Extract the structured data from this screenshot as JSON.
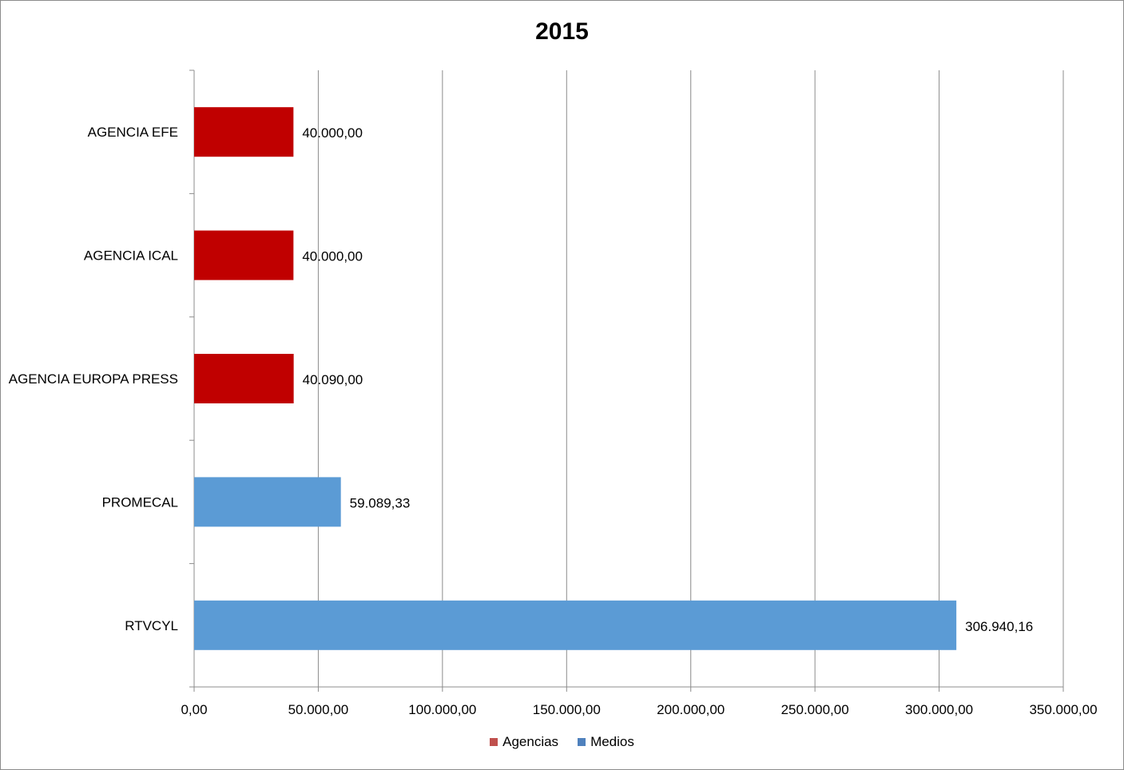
{
  "chart_data": {
    "type": "bar",
    "orientation": "horizontal",
    "title": "2015",
    "xlabel": "",
    "ylabel": "",
    "xlim": [
      0,
      350000
    ],
    "x_ticks": [
      0,
      50000,
      100000,
      150000,
      200000,
      250000,
      300000,
      350000
    ],
    "x_tick_labels": [
      "0,00",
      "50.000,00",
      "100.000,00",
      "150.000,00",
      "200.000,00",
      "250.000,00",
      "300.000,00",
      "350.000,00"
    ],
    "grid": "vertical",
    "legend_position": "bottom",
    "categories": [
      "AGENCIA EFE",
      "AGENCIA ICAL",
      "AGENCIA EUROPA PRESS",
      "PROMECAL",
      "RTVCYL"
    ],
    "series": [
      {
        "name": "Agencias",
        "color": "#c00000",
        "values": [
          40000.0,
          40000.0,
          40090.0,
          null,
          null
        ],
        "labels": [
          "40.000,00",
          "40.000,00",
          "40.090,00",
          null,
          null
        ]
      },
      {
        "name": "Medios",
        "color": "#5b9bd5",
        "values": [
          null,
          null,
          null,
          59089.33,
          306940.16
        ],
        "labels": [
          null,
          null,
          null,
          "59.089,33",
          "306.940,16"
        ]
      }
    ],
    "legend_colors": [
      "#c0504d",
      "#4f81bd"
    ]
  }
}
